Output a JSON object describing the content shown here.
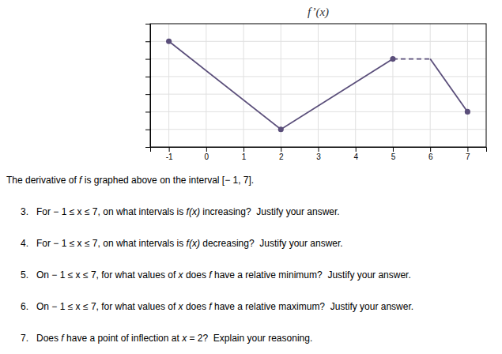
{
  "chart_data": {
    "type": "line",
    "title": "f’(x)",
    "xlim": [
      -1.5,
      7.5
    ],
    "xticks": [
      -1,
      0,
      1,
      2,
      3,
      4,
      5,
      6,
      7
    ],
    "ylim": [
      -3,
      4
    ],
    "yticks": [
      -2,
      -1,
      0,
      1,
      2,
      3
    ],
    "grid": true,
    "tick_labels": "x",
    "series": [
      {
        "type": "line",
        "line_style": "solid",
        "color": "#5a4e7a",
        "x": [
          -1,
          2,
          5
        ],
        "values": [
          3,
          -2,
          2
        ]
      },
      {
        "type": "line",
        "line_style": "dashed",
        "color": "#5a4e7a",
        "x": [
          5,
          6
        ],
        "values": [
          2,
          2
        ]
      },
      {
        "type": "line",
        "line_style": "solid",
        "color": "#5a4e7a",
        "x": [
          6,
          7
        ],
        "values": [
          2,
          -1
        ]
      },
      {
        "type": "scatter",
        "marker": "circle",
        "color": "#5a4e7a",
        "x": [
          -1,
          2,
          5,
          7
        ],
        "values": [
          3,
          -2,
          2,
          -1
        ]
      }
    ],
    "annotations": [
      [
        "The derivative of ",
        "f",
        " is graphed above on the interval [− 1, 7]."
      ],
      [
        "3.   For − 1 ≤ x ≤ 7, on what intervals is ",
        "f(x)",
        " increasing?  Justify your answer."
      ],
      [
        "4.   For − 1 ≤ x ≤ 7, on what intervals is ",
        "f(x)",
        " decreasing?  Justify your answer."
      ],
      [
        "5.   On − 1 ≤ x ≤ 7, for what values of ",
        "x",
        " does ",
        "f",
        " have a relative minimum?  Justify your answer."
      ],
      [
        "6.   On − 1 ≤ x ≤ 7, for what values of ",
        "x",
        " does ",
        "f",
        " have a relative maximum?  Justify your answer."
      ],
      [
        "7.   Does ",
        "f",
        " have a point of inflection at ",
        "x",
        " = 2?  Explain your reasoning."
      ]
    ]
  }
}
